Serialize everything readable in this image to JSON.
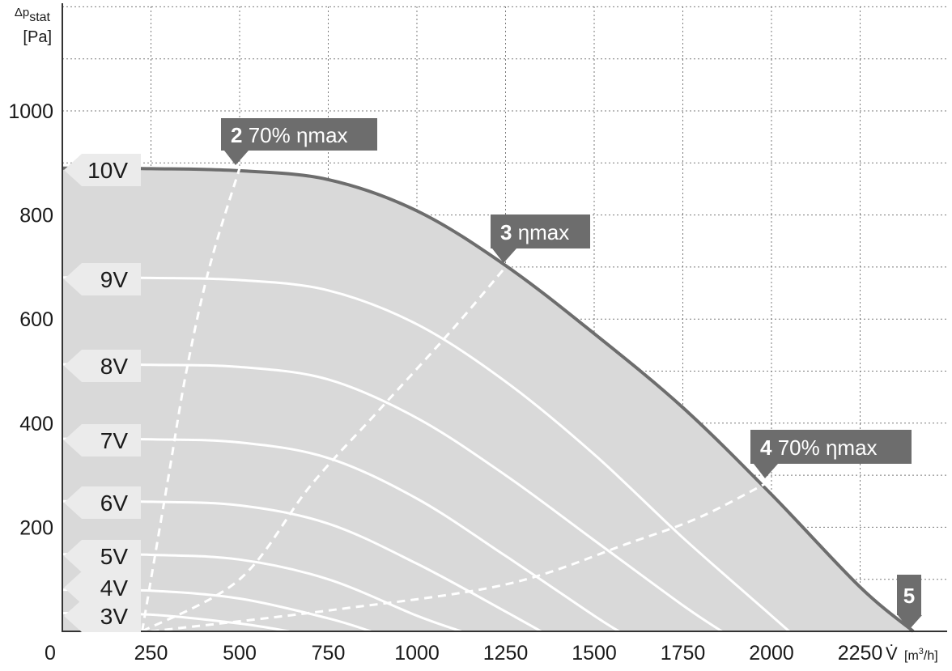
{
  "chart_data": {
    "type": "line",
    "title": "",
    "ylabel": {
      "symbol": "Δp",
      "subscript": "stat",
      "unit": "[Pa]"
    },
    "xlabel": {
      "symbol": "V̇",
      "unit_prefix": "[m",
      "unit_power": "3",
      "unit_suffix": "/h]"
    },
    "xlim": [
      0,
      2500
    ],
    "ylim": [
      0,
      1000
    ],
    "x_ticks": [
      "0",
      "250",
      "500",
      "750",
      "1000",
      "1250",
      "1500",
      "1750",
      "2000",
      "2250"
    ],
    "y_ticks": [
      "200",
      "400",
      "600",
      "800",
      "1000"
    ],
    "grid": true,
    "colors": {
      "envelope_fill": "#d9d9d9",
      "envelope_line": "#6d6d6d",
      "curve": "#ffffff",
      "callout_bg": "#6d6d6d",
      "label_tab": "#ebebeb"
    },
    "envelope": {
      "name": "10V",
      "points": [
        [
          0,
          890
        ],
        [
          250,
          889
        ],
        [
          500,
          885
        ],
        [
          750,
          868
        ],
        [
          1000,
          808
        ],
        [
          1250,
          703
        ],
        [
          1500,
          572
        ],
        [
          1750,
          430
        ],
        [
          2000,
          263
        ],
        [
          2250,
          85
        ],
        [
          2400,
          0
        ]
      ]
    },
    "series": [
      {
        "name": "9V",
        "points": [
          [
            0,
            680
          ],
          [
            250,
            679
          ],
          [
            500,
            675
          ],
          [
            750,
            655
          ],
          [
            1000,
            590
          ],
          [
            1250,
            480
          ],
          [
            1500,
            340
          ],
          [
            1750,
            180
          ],
          [
            2000,
            30
          ],
          [
            2050,
            0
          ]
        ]
      },
      {
        "name": "8V",
        "points": [
          [
            0,
            513
          ],
          [
            250,
            512
          ],
          [
            500,
            508
          ],
          [
            750,
            484
          ],
          [
            1000,
            410
          ],
          [
            1250,
            300
          ],
          [
            1500,
            175
          ],
          [
            1750,
            50
          ],
          [
            1860,
            0
          ]
        ]
      },
      {
        "name": "7V",
        "points": [
          [
            0,
            370
          ],
          [
            250,
            369
          ],
          [
            500,
            363
          ],
          [
            750,
            333
          ],
          [
            1000,
            255
          ],
          [
            1250,
            145
          ],
          [
            1500,
            30
          ],
          [
            1570,
            0
          ]
        ]
      },
      {
        "name": "6V",
        "points": [
          [
            0,
            250
          ],
          [
            250,
            249
          ],
          [
            500,
            242
          ],
          [
            750,
            207
          ],
          [
            1000,
            130
          ],
          [
            1250,
            38
          ],
          [
            1350,
            0
          ]
        ]
      },
      {
        "name": "5V",
        "points": [
          [
            0,
            148
          ],
          [
            250,
            147
          ],
          [
            500,
            138
          ],
          [
            750,
            100
          ],
          [
            1000,
            30
          ],
          [
            1125,
            0
          ]
        ]
      },
      {
        "name": "4V",
        "points": [
          [
            0,
            80
          ],
          [
            250,
            78
          ],
          [
            500,
            63
          ],
          [
            750,
            25
          ],
          [
            870,
            0
          ]
        ]
      },
      {
        "name": "3V",
        "points": [
          [
            0,
            35
          ],
          [
            250,
            32
          ],
          [
            500,
            15
          ],
          [
            640,
            0
          ]
        ]
      }
    ],
    "efficiency_lines": [
      {
        "id": "2",
        "label": "70% ηmax",
        "points": [
          [
            225,
            0
          ],
          [
            300,
            300
          ],
          [
            350,
            500
          ],
          [
            415,
            700
          ],
          [
            500,
            890
          ]
        ]
      },
      {
        "id": "3",
        "label": "ηmax",
        "points": [
          [
            225,
            0
          ],
          [
            500,
            100
          ],
          [
            700,
            280
          ],
          [
            900,
            430
          ],
          [
            1100,
            580
          ],
          [
            1250,
            700
          ]
        ]
      },
      {
        "id": "4",
        "label": "70% ηmax",
        "points": [
          [
            250,
            0
          ],
          [
            750,
            40
          ],
          [
            1250,
            90
          ],
          [
            1600,
            170
          ],
          [
            1800,
            220
          ],
          [
            2000,
            290
          ]
        ]
      },
      {
        "id": "5",
        "label": "",
        "points": []
      }
    ]
  }
}
